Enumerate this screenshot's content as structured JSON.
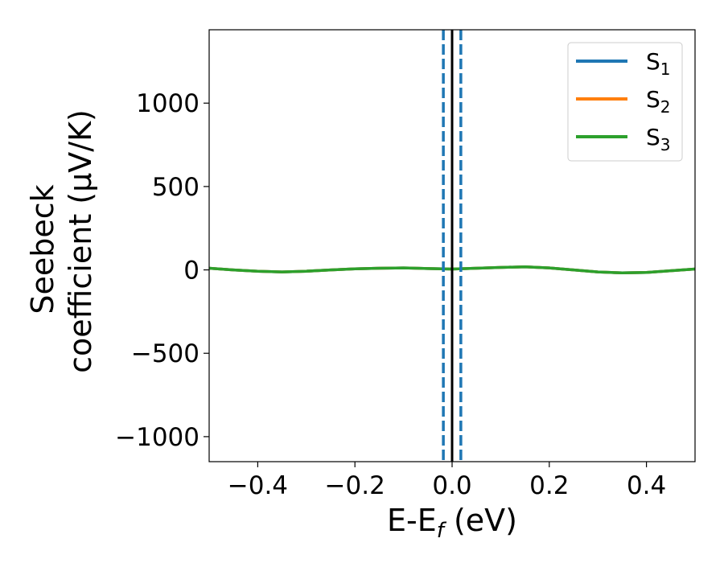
{
  "chart_data": {
    "type": "line",
    "xlabel": "E-E",
    "xlabel_sub": "f",
    "xlabel_unit": " (eV)",
    "ylabel_line1": "Seebeck",
    "ylabel_line2": "coefficient  (μV/K)",
    "xlim": [
      -0.5,
      0.5
    ],
    "ylim": [
      -1150,
      1440
    ],
    "xticks": [
      -0.4,
      -0.2,
      0.0,
      0.2,
      0.4
    ],
    "xtick_labels": [
      "−0.4",
      "−0.2",
      "0.0",
      "0.2",
      "0.4"
    ],
    "yticks": [
      -1000,
      -500,
      0,
      500,
      1000
    ],
    "ytick_labels": [
      "−1000",
      "−500",
      "0",
      "500",
      "1000"
    ],
    "grid": false,
    "legend_position": "top-right",
    "series": [
      {
        "name": "S",
        "sub": "1",
        "color": "#1f77b4",
        "x": [
          -0.5,
          -0.45,
          -0.4,
          -0.35,
          -0.3,
          -0.25,
          -0.2,
          -0.15,
          -0.1,
          -0.05,
          0.0,
          0.05,
          0.1,
          0.15,
          0.2,
          0.25,
          0.3,
          0.35,
          0.4,
          0.45,
          0.5
        ],
        "y": [
          10,
          0,
          -8,
          -12,
          -8,
          0,
          6,
          10,
          12,
          8,
          5,
          10,
          15,
          18,
          12,
          0,
          -12,
          -18,
          -15,
          -5,
          5
        ]
      },
      {
        "name": "S",
        "sub": "2",
        "color": "#ff7f0e",
        "x": [
          -0.5,
          -0.45,
          -0.4,
          -0.35,
          -0.3,
          -0.25,
          -0.2,
          -0.15,
          -0.1,
          -0.05,
          0.0,
          0.05,
          0.1,
          0.15,
          0.2,
          0.25,
          0.3,
          0.35,
          0.4,
          0.45,
          0.5
        ],
        "y": [
          10,
          0,
          -8,
          -12,
          -8,
          0,
          6,
          10,
          12,
          8,
          5,
          10,
          15,
          18,
          12,
          0,
          -12,
          -18,
          -15,
          -5,
          5
        ]
      },
      {
        "name": "S",
        "sub": "3",
        "color": "#2ca02c",
        "x": [
          -0.5,
          -0.45,
          -0.4,
          -0.35,
          -0.3,
          -0.25,
          -0.2,
          -0.15,
          -0.1,
          -0.05,
          0.0,
          0.05,
          0.1,
          0.15,
          0.2,
          0.25,
          0.3,
          0.35,
          0.4,
          0.45,
          0.5
        ],
        "y": [
          10,
          0,
          -8,
          -12,
          -8,
          0,
          6,
          10,
          12,
          8,
          5,
          10,
          15,
          18,
          12,
          0,
          -12,
          -18,
          -15,
          -5,
          5
        ]
      }
    ],
    "vertical_lines": [
      {
        "x": -0.018,
        "color": "#1f77b4",
        "style": "dashed"
      },
      {
        "x": 0.0,
        "color": "#000000",
        "style": "solid"
      },
      {
        "x": 0.018,
        "color": "#1f77b4",
        "style": "dashed"
      }
    ]
  }
}
